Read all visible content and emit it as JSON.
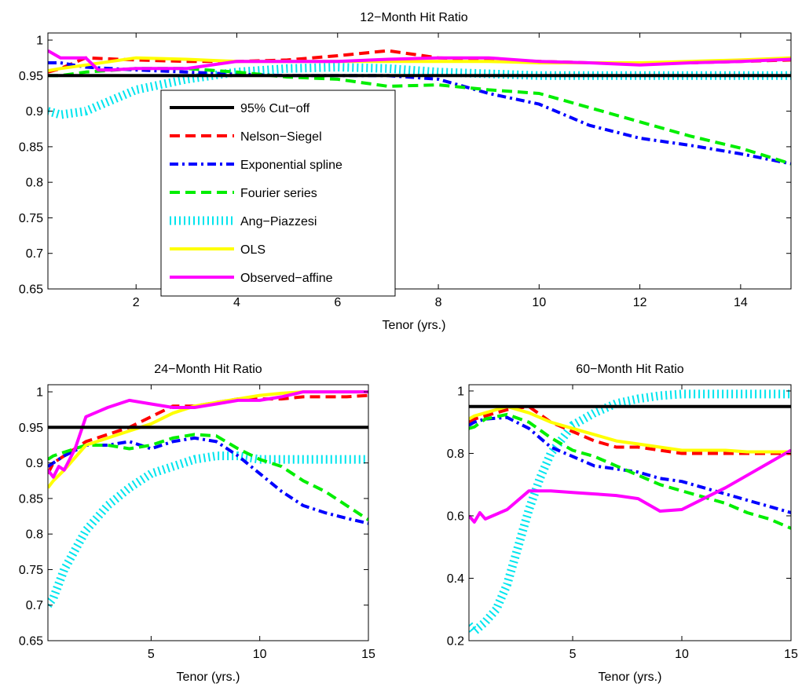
{
  "figure": {
    "styles": {
      "cutoff": {
        "color": "#000000",
        "dash": "",
        "width": 4
      },
      "ns": {
        "color": "#ff0000",
        "dash": "13,7",
        "width": 4
      },
      "exp": {
        "color": "#0000ff",
        "dash": "11,5,3,5",
        "width": 4
      },
      "fourier": {
        "color": "#00ee00",
        "dash": "13,7",
        "width": 4
      },
      "ap": {
        "color": "#00e5ee",
        "dash": "2,4",
        "width": 11
      },
      "ols": {
        "color": "#ffff00",
        "dash": "",
        "width": 4
      },
      "obs": {
        "color": "#ff00ff",
        "dash": "",
        "width": 4
      }
    }
  },
  "chart_data": [
    {
      "type": "line",
      "title": "12−Month Hit Ratio",
      "xlabel": "Tenor (yrs.)",
      "ylabel": "",
      "xlim": [
        0.25,
        15
      ],
      "ylim": [
        0.65,
        1.01
      ],
      "xticks": [
        2,
        4,
        6,
        8,
        10,
        12,
        14
      ],
      "xtick_labels": [
        "2",
        "4",
        "6",
        "8",
        "10",
        "12",
        "14"
      ],
      "yticks": [
        0.65,
        0.7,
        0.75,
        0.8,
        0.85,
        0.9,
        0.95,
        1
      ],
      "ytick_labels": [
        "0.65",
        "0.7",
        "0.75",
        "0.8",
        "0.85",
        "0.9",
        "0.95",
        "1"
      ],
      "legend": {
        "placement": "inside-left",
        "entries": [
          {
            "key": "cutoff",
            "label": "95% Cut−off"
          },
          {
            "key": "ns",
            "label": "Nelson−Siegel"
          },
          {
            "key": "exp",
            "label": "Exponential spline"
          },
          {
            "key": "fourier",
            "label": "Fourier series"
          },
          {
            "key": "ap",
            "label": "Ang−Piazzesi"
          },
          {
            "key": "ols",
            "label": "OLS"
          },
          {
            "key": "obs",
            "label": "Observed−affine"
          }
        ]
      },
      "series": [
        {
          "name": "95% Cut−off",
          "key": "cutoff",
          "x": [
            0.25,
            15
          ],
          "y": [
            0.95,
            0.95
          ]
        },
        {
          "name": "Nelson−Siegel",
          "key": "ns",
          "x": [
            0.25,
            0.5,
            1,
            2,
            3,
            4,
            5,
            6,
            7,
            8,
            9,
            10,
            11,
            12,
            13,
            14,
            15
          ],
          "y": [
            0.955,
            0.96,
            0.975,
            0.972,
            0.97,
            0.97,
            0.972,
            0.978,
            0.985,
            0.975,
            0.972,
            0.97,
            0.968,
            0.968,
            0.968,
            0.97,
            0.972
          ]
        },
        {
          "name": "Exponential spline",
          "key": "exp",
          "x": [
            0.25,
            0.5,
            1,
            2,
            3,
            4,
            5,
            6,
            7,
            8,
            9,
            10,
            11,
            12,
            13,
            14,
            15
          ],
          "y": [
            0.968,
            0.968,
            0.962,
            0.958,
            0.955,
            0.952,
            0.95,
            0.95,
            0.95,
            0.945,
            0.925,
            0.91,
            0.88,
            0.862,
            0.852,
            0.84,
            0.826
          ]
        },
        {
          "name": "Fourier series",
          "key": "fourier",
          "x": [
            0.25,
            0.5,
            1,
            2,
            3,
            4,
            5,
            6,
            7,
            8,
            9,
            10,
            11,
            12,
            13,
            14,
            15
          ],
          "y": [
            0.95,
            0.95,
            0.955,
            0.96,
            0.96,
            0.955,
            0.948,
            0.945,
            0.935,
            0.937,
            0.93,
            0.925,
            0.905,
            0.885,
            0.865,
            0.848,
            0.826
          ]
        },
        {
          "name": "Ang−Piazzesi",
          "key": "ap",
          "x": [
            0.25,
            0.5,
            1,
            1.5,
            2,
            3,
            4,
            5,
            6,
            7,
            8,
            10,
            12,
            15
          ],
          "y": [
            0.9,
            0.895,
            0.9,
            0.915,
            0.93,
            0.945,
            0.955,
            0.96,
            0.962,
            0.96,
            0.955,
            0.95,
            0.95,
            0.95
          ]
        },
        {
          "name": "OLS",
          "key": "ols",
          "x": [
            0.25,
            0.5,
            1,
            2,
            3,
            4,
            5,
            6,
            7,
            8,
            9,
            10,
            11,
            12,
            13,
            14,
            15
          ],
          "y": [
            0.957,
            0.96,
            0.965,
            0.975,
            0.973,
            0.97,
            0.97,
            0.97,
            0.97,
            0.97,
            0.97,
            0.968,
            0.968,
            0.968,
            0.97,
            0.972,
            0.975
          ]
        },
        {
          "name": "Observed−affine",
          "key": "obs",
          "x": [
            0.25,
            0.5,
            0.75,
            1,
            1.25,
            1.5,
            2,
            3,
            4,
            5,
            6,
            7,
            8,
            9,
            10,
            11,
            12,
            13,
            14,
            15
          ],
          "y": [
            0.985,
            0.975,
            0.975,
            0.975,
            0.958,
            0.958,
            0.96,
            0.96,
            0.97,
            0.97,
            0.97,
            0.973,
            0.975,
            0.975,
            0.97,
            0.968,
            0.965,
            0.968,
            0.97,
            0.973
          ]
        }
      ]
    },
    {
      "type": "line",
      "title": "24−Month Hit Ratio",
      "xlabel": "Tenor (yrs.)",
      "ylabel": "",
      "xlim": [
        0.25,
        15
      ],
      "ylim": [
        0.65,
        1.01
      ],
      "xticks": [
        5,
        10,
        15
      ],
      "xtick_labels": [
        "5",
        "10",
        "15"
      ],
      "yticks": [
        0.65,
        0.7,
        0.75,
        0.8,
        0.85,
        0.9,
        0.95,
        1
      ],
      "ytick_labels": [
        "0.65",
        "0.7",
        "0.75",
        "0.8",
        "0.85",
        "0.9",
        "0.95",
        "1"
      ],
      "series": [
        {
          "name": "95% Cut−off",
          "key": "cutoff",
          "x": [
            0.25,
            15
          ],
          "y": [
            0.95,
            0.95
          ]
        },
        {
          "name": "Nelson−Siegel",
          "key": "ns",
          "x": [
            0.25,
            0.5,
            1,
            2,
            3,
            4,
            5,
            6,
            7,
            8,
            9,
            10,
            11,
            12,
            13,
            14,
            15
          ],
          "y": [
            0.885,
            0.9,
            0.91,
            0.93,
            0.94,
            0.95,
            0.965,
            0.98,
            0.98,
            0.985,
            0.99,
            0.99,
            0.99,
            0.993,
            0.993,
            0.993,
            0.995
          ]
        },
        {
          "name": "Exponential spline",
          "key": "exp",
          "x": [
            0.25,
            0.5,
            1,
            2,
            3,
            4,
            5,
            6,
            7,
            8,
            9,
            10,
            11,
            12,
            13,
            14,
            15
          ],
          "y": [
            0.895,
            0.9,
            0.91,
            0.925,
            0.925,
            0.93,
            0.92,
            0.93,
            0.935,
            0.93,
            0.91,
            0.885,
            0.86,
            0.84,
            0.83,
            0.822,
            0.815
          ]
        },
        {
          "name": "Fourier series",
          "key": "fourier",
          "x": [
            0.25,
            0.5,
            1,
            2,
            3,
            4,
            5,
            6,
            7,
            8,
            9,
            10,
            11,
            12,
            13,
            14,
            15
          ],
          "y": [
            0.905,
            0.91,
            0.915,
            0.925,
            0.925,
            0.92,
            0.925,
            0.935,
            0.94,
            0.938,
            0.92,
            0.905,
            0.895,
            0.875,
            0.86,
            0.84,
            0.82
          ]
        },
        {
          "name": "Ang−Piazzesi",
          "key": "ap",
          "x": [
            0.25,
            0.5,
            1,
            2,
            3,
            4,
            5,
            6,
            7,
            8,
            9,
            10,
            12,
            15
          ],
          "y": [
            0.7,
            0.71,
            0.75,
            0.805,
            0.84,
            0.865,
            0.885,
            0.895,
            0.905,
            0.91,
            0.91,
            0.905,
            0.905,
            0.905
          ]
        },
        {
          "name": "OLS",
          "key": "ols",
          "x": [
            0.25,
            0.5,
            1,
            2,
            3,
            4,
            5,
            6,
            7,
            8,
            9,
            10,
            11,
            12,
            13,
            14,
            15
          ],
          "y": [
            0.865,
            0.875,
            0.89,
            0.925,
            0.935,
            0.945,
            0.955,
            0.97,
            0.98,
            0.985,
            0.99,
            0.995,
            0.998,
            1.0,
            1.0,
            1.0,
            1.0
          ]
        },
        {
          "name": "Observed−affine",
          "key": "obs",
          "x": [
            0.25,
            0.5,
            0.75,
            1,
            1.5,
            2,
            3,
            4,
            5,
            6,
            7,
            8,
            9,
            10,
            11,
            12,
            13,
            14,
            15
          ],
          "y": [
            0.89,
            0.88,
            0.895,
            0.89,
            0.92,
            0.965,
            0.978,
            0.988,
            0.983,
            0.978,
            0.978,
            0.983,
            0.988,
            0.988,
            0.993,
            1.0,
            1.0,
            1.0,
            1.0
          ]
        }
      ]
    },
    {
      "type": "line",
      "title": "60−Month Hit Ratio",
      "xlabel": "Tenor (yrs.)",
      "ylabel": "",
      "xlim": [
        0.25,
        15
      ],
      "ylim": [
        0.2,
        1.02
      ],
      "xticks": [
        5,
        10,
        15
      ],
      "xtick_labels": [
        "5",
        "10",
        "15"
      ],
      "yticks": [
        0.2,
        0.4,
        0.6,
        0.8,
        1
      ],
      "ytick_labels": [
        "0.2",
        "0.4",
        "0.6",
        "0.8",
        "1"
      ],
      "series": [
        {
          "name": "95% Cut−off",
          "key": "cutoff",
          "x": [
            0.25,
            15
          ],
          "y": [
            0.95,
            0.95
          ]
        },
        {
          "name": "Nelson−Siegel",
          "key": "ns",
          "x": [
            0.25,
            0.5,
            1,
            2,
            3,
            4,
            5,
            6,
            7,
            8,
            9,
            10,
            11,
            12,
            13,
            14,
            15
          ],
          "y": [
            0.9,
            0.91,
            0.92,
            0.94,
            0.95,
            0.9,
            0.87,
            0.84,
            0.82,
            0.82,
            0.81,
            0.8,
            0.8,
            0.8,
            0.8,
            0.8,
            0.8
          ]
        },
        {
          "name": "Exponential spline",
          "key": "exp",
          "x": [
            0.25,
            0.5,
            1,
            2,
            3,
            4,
            5,
            6,
            7,
            8,
            9,
            10,
            11,
            12,
            13,
            14,
            15
          ],
          "y": [
            0.89,
            0.9,
            0.91,
            0.915,
            0.88,
            0.82,
            0.79,
            0.76,
            0.75,
            0.74,
            0.72,
            0.71,
            0.69,
            0.67,
            0.65,
            0.63,
            0.61
          ]
        },
        {
          "name": "Fourier series",
          "key": "fourier",
          "x": [
            0.25,
            0.5,
            1,
            2,
            3,
            4,
            5,
            6,
            7,
            8,
            9,
            10,
            11,
            12,
            13,
            14,
            15
          ],
          "y": [
            0.88,
            0.885,
            0.91,
            0.925,
            0.9,
            0.85,
            0.81,
            0.79,
            0.76,
            0.73,
            0.7,
            0.68,
            0.66,
            0.64,
            0.61,
            0.59,
            0.56
          ]
        },
        {
          "name": "Ang−Piazzesi",
          "key": "ap",
          "x": [
            0.25,
            0.5,
            1,
            1.5,
            2,
            2.5,
            3,
            3.5,
            4,
            5,
            6,
            7,
            8,
            9,
            10,
            12,
            15
          ],
          "y": [
            0.25,
            0.23,
            0.26,
            0.3,
            0.38,
            0.5,
            0.62,
            0.72,
            0.8,
            0.89,
            0.93,
            0.96,
            0.975,
            0.985,
            0.99,
            0.99,
            0.99
          ]
        },
        {
          "name": "OLS",
          "key": "ols",
          "x": [
            0.25,
            0.5,
            1,
            2,
            3,
            4,
            5,
            6,
            7,
            8,
            9,
            10,
            11,
            12,
            13,
            14,
            15
          ],
          "y": [
            0.91,
            0.92,
            0.93,
            0.95,
            0.93,
            0.9,
            0.88,
            0.86,
            0.84,
            0.83,
            0.82,
            0.81,
            0.81,
            0.81,
            0.805,
            0.805,
            0.805
          ]
        },
        {
          "name": "Observed−affine",
          "key": "obs",
          "x": [
            0.25,
            0.5,
            0.75,
            1,
            2,
            3,
            4,
            5,
            6,
            7,
            8,
            9,
            10,
            11,
            12,
            13,
            14,
            15
          ],
          "y": [
            0.6,
            0.58,
            0.61,
            0.59,
            0.62,
            0.68,
            0.68,
            0.675,
            0.67,
            0.665,
            0.655,
            0.615,
            0.62,
            0.655,
            0.69,
            0.73,
            0.77,
            0.81
          ]
        }
      ]
    }
  ]
}
